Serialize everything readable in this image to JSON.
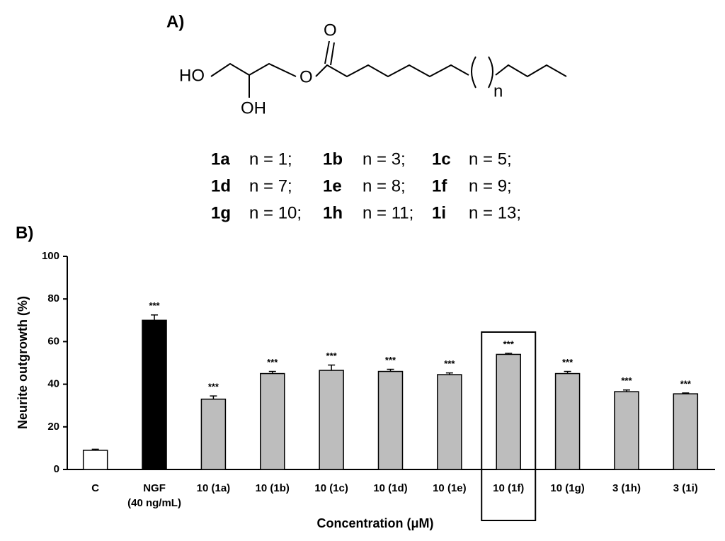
{
  "panel_a": {
    "label": "A)",
    "atoms": {
      "ho": "HO",
      "oh": "OH",
      "ester_o": "O",
      "carbonyl_o": "O",
      "n": "n"
    },
    "compounds": [
      [
        {
          "id": "1a",
          "n": "n = 1;"
        },
        {
          "id": "1b",
          "n": "n = 3;"
        },
        {
          "id": "1c",
          "n": "n = 5;"
        }
      ],
      [
        {
          "id": "1d",
          "n": "n = 7;"
        },
        {
          "id": "1e",
          "n": "n = 8;"
        },
        {
          "id": "1f",
          "n": "n = 9;"
        }
      ],
      [
        {
          "id": "1g",
          "n": "n = 10;"
        },
        {
          "id": "1h",
          "n": "n = 11;"
        },
        {
          "id": "1i",
          "n": "n = 13;"
        }
      ]
    ]
  },
  "panel_b": {
    "label": "B)"
  },
  "chart_data": {
    "type": "bar",
    "x_label": "Concentration (μM)",
    "y_label": "Neurite outgrowth (%)",
    "categories": [
      "C",
      "NGF\n(40 ng/mL)",
      "10 (1a)",
      "10 (1b)",
      "10 (1c)",
      "10 (1d)",
      "10 (1e)",
      "10 (1f)",
      "10 (1g)",
      "3 (1h)",
      "3 (1i)"
    ],
    "values": [
      9,
      70,
      33,
      45,
      46.5,
      46,
      44.5,
      54,
      45,
      36.5,
      35.5
    ],
    "errors": [
      0.5,
      2.5,
      1.5,
      1,
      2.5,
      1,
      0.8,
      0.5,
      1,
      0.8,
      0.4
    ],
    "colors": [
      "#ffffff",
      "#000000",
      "#bdbdbd",
      "#bdbdbd",
      "#bdbdbd",
      "#bdbdbd",
      "#bdbdbd",
      "#bdbdbd",
      "#bdbdbd",
      "#bdbdbd",
      "#bdbdbd"
    ],
    "annotations": [
      null,
      "***",
      "***",
      "***",
      "***",
      "***",
      "***",
      "***",
      "***",
      "***",
      "***"
    ],
    "highlight": 7,
    "ylim": [
      0,
      100
    ],
    "yticks": [
      0,
      20,
      40,
      60,
      80,
      100
    ],
    "grid": false
  }
}
